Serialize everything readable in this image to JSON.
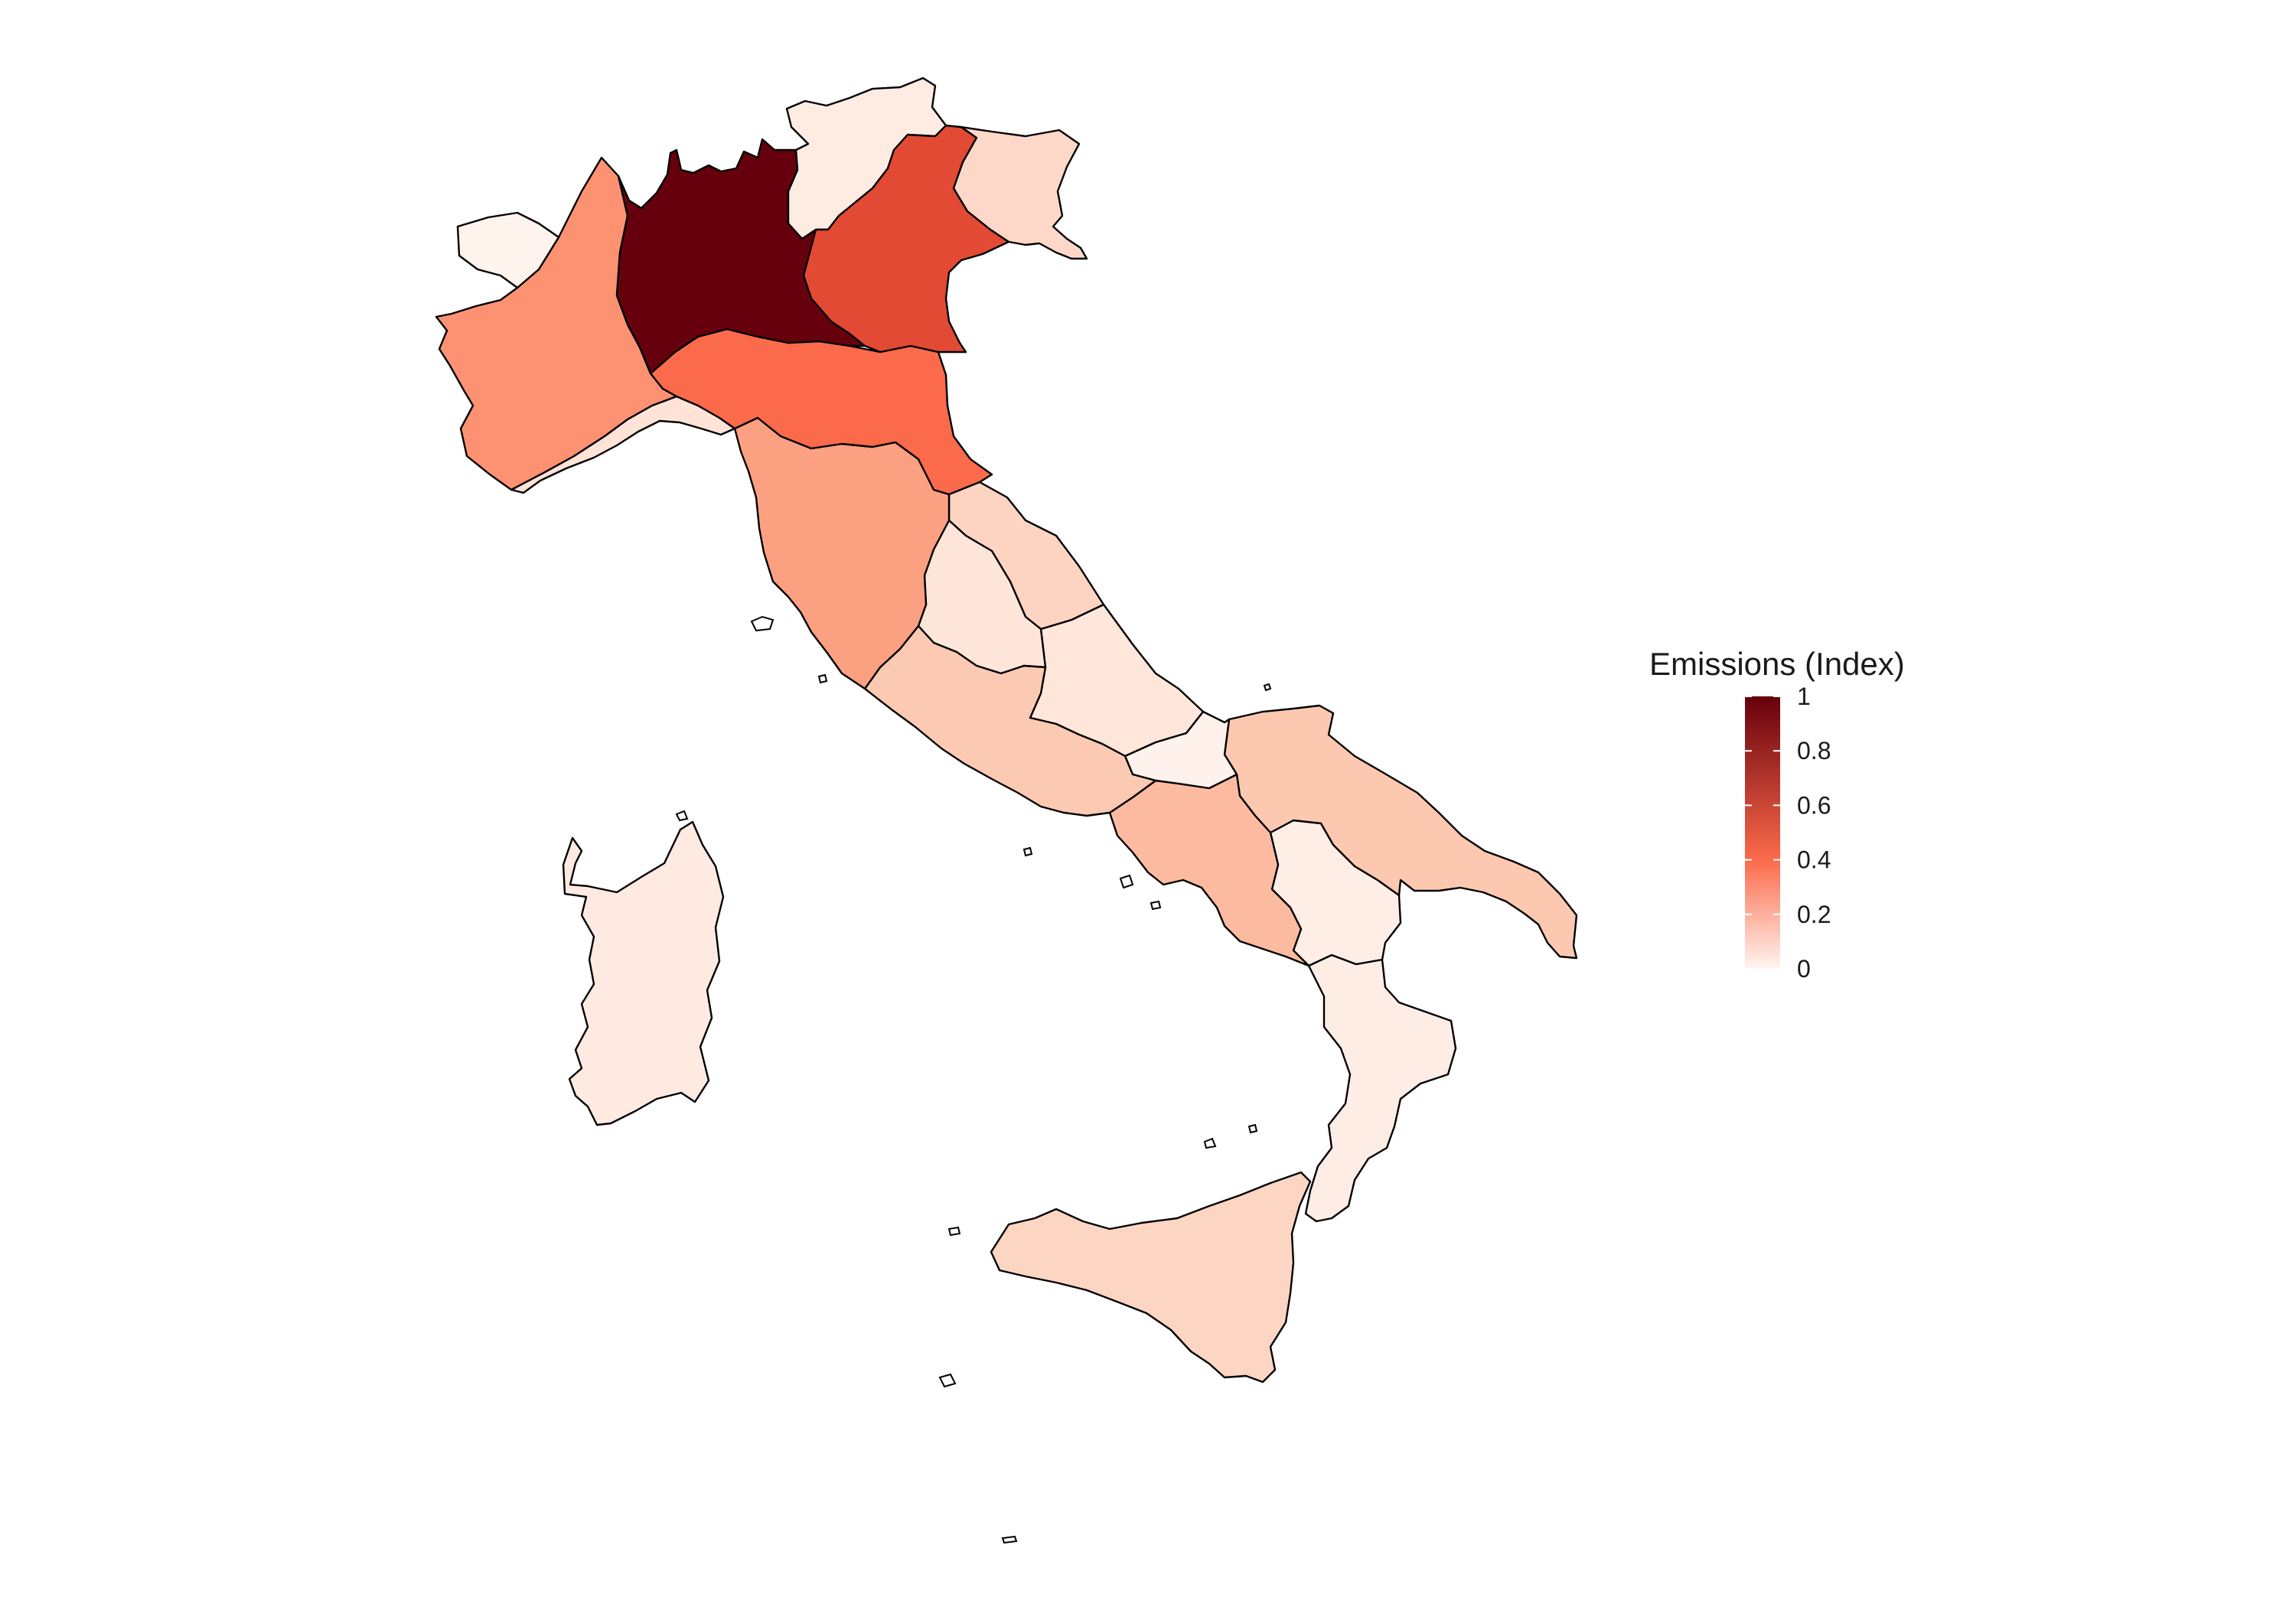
{
  "legend": {
    "title": "Emissions (Index)",
    "ticks": [
      {
        "value": 1,
        "label": "1"
      },
      {
        "value": 0.8,
        "label": "0.8"
      },
      {
        "value": 0.6,
        "label": "0.6"
      },
      {
        "value": 0.4,
        "label": "0.4"
      },
      {
        "value": 0.2,
        "label": "0.2"
      },
      {
        "value": 0,
        "label": "0"
      }
    ],
    "color_low": "#fff5f0",
    "color_mid": "#fb6a4a",
    "color_high": "#67000d",
    "range": [
      0,
      1
    ]
  },
  "regions": [
    {
      "id": "lombardia",
      "index": 1.0,
      "color": "#67000d"
    },
    {
      "id": "veneto",
      "index": 0.5,
      "color": "#e34a33"
    },
    {
      "id": "emilia-romagna",
      "index": 0.42,
      "color": "#fb6a4a"
    },
    {
      "id": "piemonte",
      "index": 0.3,
      "color": "#fc9272"
    },
    {
      "id": "toscana",
      "index": 0.28,
      "color": "#fca082"
    },
    {
      "id": "campania",
      "index": 0.2,
      "color": "#fcbba1"
    },
    {
      "id": "puglia",
      "index": 0.17,
      "color": "#fcc8b0"
    },
    {
      "id": "lazio",
      "index": 0.16,
      "color": "#fcc9b3"
    },
    {
      "id": "sicilia",
      "index": 0.13,
      "color": "#fdd5c3"
    },
    {
      "id": "marche",
      "index": 0.13,
      "color": "#fdd4c2"
    },
    {
      "id": "friuli-venezia-giulia",
      "index": 0.12,
      "color": "#fdd8c8"
    },
    {
      "id": "liguria",
      "index": 0.08,
      "color": "#fee3d6"
    },
    {
      "id": "umbria",
      "index": 0.07,
      "color": "#fee5d9"
    },
    {
      "id": "abruzzo",
      "index": 0.06,
      "color": "#fee6db"
    },
    {
      "id": "sardegna",
      "index": 0.06,
      "color": "#feeae1"
    },
    {
      "id": "trentino-alto-adige",
      "index": 0.05,
      "color": "#feece3"
    },
    {
      "id": "calabria",
      "index": 0.05,
      "color": "#feede5"
    },
    {
      "id": "basilicata",
      "index": 0.04,
      "color": "#feeee6"
    },
    {
      "id": "molise",
      "index": 0.02,
      "color": "#fff2ec"
    },
    {
      "id": "valle-d-aosta",
      "index": 0.01,
      "color": "#fff3ee"
    }
  ]
}
